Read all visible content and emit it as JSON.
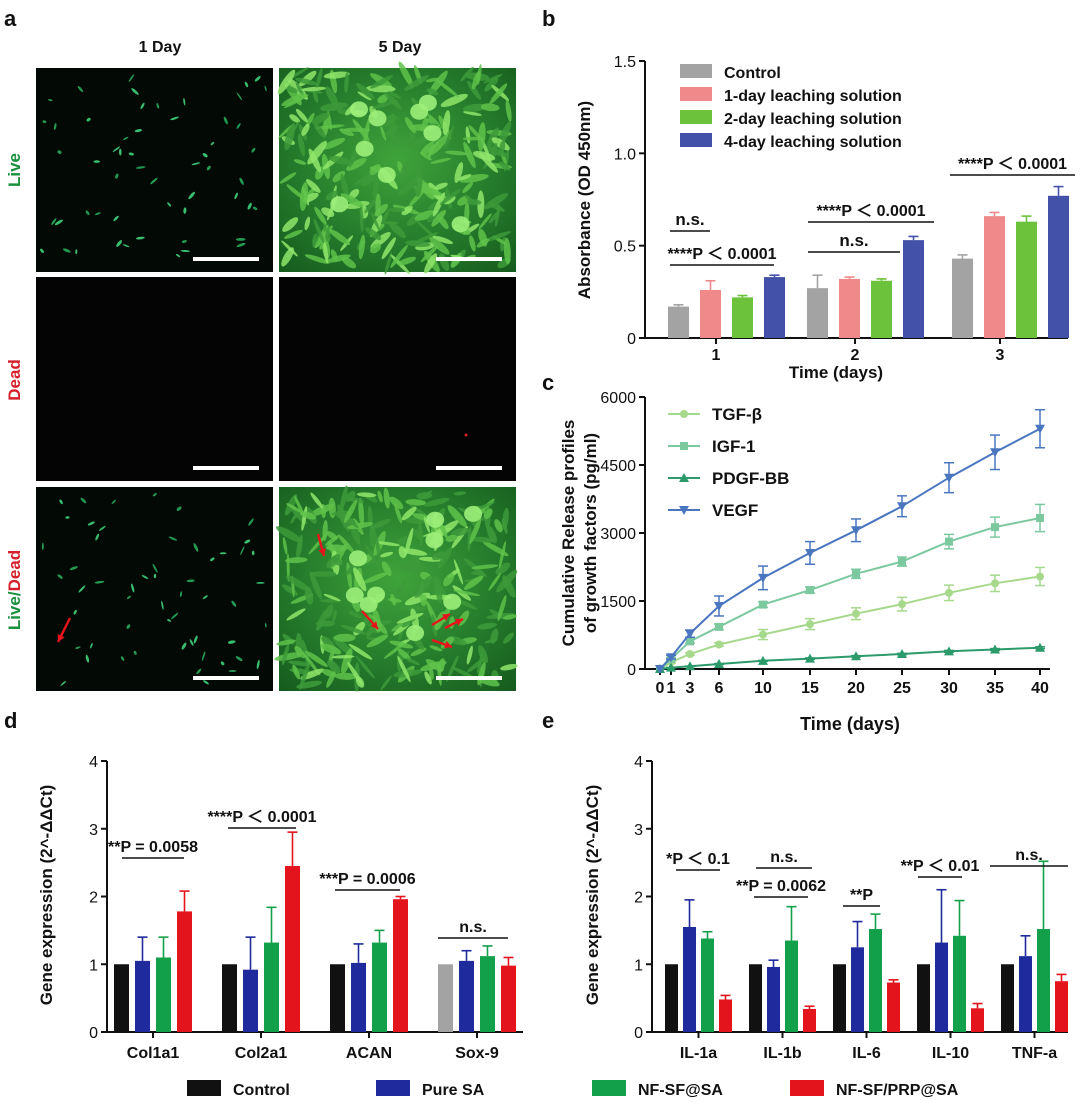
{
  "panel_labels": {
    "a": "a",
    "b": "b",
    "c": "c",
    "d": "d",
    "e": "e"
  },
  "micrographs": {
    "columns": [
      "1 Day",
      "5 Day"
    ],
    "rows": [
      "Live",
      "Dead",
      "Live/Dead"
    ],
    "row_label_live_part": "Live",
    "row_label_dead_part": "Dead",
    "row_label_separator": "/",
    "live_color": "#1a8f3c",
    "dead_color": "#d4202a"
  },
  "colors": {
    "control": "#a3a3a3",
    "one_day": "#f08a8a",
    "two_day": "#6cc23a",
    "four_day": "#4451a8",
    "tgf": "#a6d98c",
    "igf": "#7cc9a0",
    "pdgf": "#2c9a6a",
    "vegf": "#4a76c0",
    "d_control": "#111111",
    "d_puresa": "#1f2a9c",
    "d_nfsf": "#13a04a",
    "d_nfsfprp": "#e3141c"
  },
  "chart_data": [
    {
      "type": "bar",
      "panel": "b",
      "categories": [
        "1",
        "2",
        "3"
      ],
      "xlabel": "Time (days)",
      "ylabel": "Absorbance (OD 450nm)",
      "ylim": [
        0,
        1.5
      ],
      "yticks": [
        "0",
        "0.5",
        "1.0",
        "1.5"
      ],
      "legend_position": "top-left",
      "series": [
        {
          "name": "Control",
          "values": [
            0.17,
            0.27,
            0.43
          ],
          "errors": [
            0.01,
            0.07,
            0.02
          ]
        },
        {
          "name": "1-day leaching solution",
          "values": [
            0.26,
            0.32,
            0.66
          ],
          "errors": [
            0.05,
            0.01,
            0.02
          ]
        },
        {
          "name": "2-day leaching solution",
          "values": [
            0.22,
            0.31,
            0.63
          ],
          "errors": [
            0.01,
            0.01,
            0.03
          ]
        },
        {
          "name": "4-day leaching solution",
          "values": [
            0.33,
            0.53,
            0.77
          ],
          "errors": [
            0.01,
            0.02,
            0.05
          ]
        }
      ],
      "annotations": [
        "n.s.",
        "****P ＜ 0.0001",
        "****P ＜ 0.0001",
        "n.s.",
        "****P ＜ 0.0001"
      ]
    },
    {
      "type": "line",
      "panel": "c",
      "x": [
        0,
        1,
        3,
        6,
        10,
        15,
        20,
        25,
        30,
        35,
        40
      ],
      "xticks": [
        "0",
        "1",
        "3",
        "6",
        "10",
        "15",
        "20",
        "25",
        "30",
        "35",
        "40"
      ],
      "xlabel": "Time (days)",
      "ylabel_line1": "Cumulative Release profiles",
      "ylabel_line2": "of growth factors (pg/ml)",
      "ylim": [
        0,
        6000
      ],
      "yticks": [
        "0",
        "1500",
        "3000",
        "4500",
        "6000"
      ],
      "legend_position": "top-left",
      "series": [
        {
          "name": "TGF-β",
          "marker": "circle",
          "values": [
            0,
            150,
            330,
            540,
            760,
            990,
            1220,
            1430,
            1680,
            1890,
            2040
          ],
          "errors": [
            0,
            20,
            30,
            40,
            110,
            120,
            130,
            150,
            170,
            180,
            200
          ]
        },
        {
          "name": "IGF-1",
          "marker": "square",
          "values": [
            0,
            220,
            610,
            930,
            1420,
            1740,
            2100,
            2370,
            2810,
            3130,
            3330
          ],
          "errors": [
            0,
            30,
            40,
            60,
            60,
            70,
            100,
            100,
            160,
            220,
            300
          ]
        },
        {
          "name": "PDGF-BB",
          "marker": "triangle-up",
          "values": [
            0,
            30,
            60,
            110,
            180,
            230,
            280,
            330,
            390,
            430,
            470
          ],
          "errors": [
            0,
            5,
            5,
            10,
            10,
            15,
            15,
            15,
            20,
            20,
            20
          ]
        },
        {
          "name": "VEGF",
          "marker": "triangle-down",
          "values": [
            0,
            260,
            780,
            1390,
            2010,
            2560,
            3060,
            3590,
            4220,
            4780,
            5300
          ],
          "errors": [
            0,
            40,
            80,
            220,
            260,
            250,
            250,
            230,
            330,
            380,
            420
          ]
        }
      ]
    },
    {
      "type": "bar",
      "panel": "d",
      "categories": [
        "Col1a1",
        "Col2a1",
        "ACAN",
        "Sox-9"
      ],
      "ylabel": "Gene expression (2^-ΔΔCt)",
      "ylim": [
        0,
        4
      ],
      "yticks": [
        "0",
        "1",
        "2",
        "3",
        "4"
      ],
      "series": [
        {
          "name": "Control",
          "values": [
            1.0,
            1.0,
            1.0,
            1.0
          ],
          "errors": [
            0,
            0,
            0,
            0
          ]
        },
        {
          "name": "Pure SA",
          "values": [
            1.05,
            0.92,
            1.02,
            1.05
          ],
          "errors": [
            0.35,
            0.48,
            0.28,
            0.15
          ]
        },
        {
          "name": "NF-SF@SA",
          "values": [
            1.1,
            1.32,
            1.32,
            1.12
          ],
          "errors": [
            0.3,
            0.52,
            0.18,
            0.15
          ]
        },
        {
          "name": "NF-SF/PRP@SA",
          "values": [
            1.78,
            2.45,
            1.96,
            0.98
          ],
          "errors": [
            0.3,
            0.5,
            0.04,
            0.12
          ]
        }
      ],
      "annotations": [
        "**P = 0.0058",
        "****P ＜ 0.0001",
        "***P = 0.0006",
        "n.s."
      ]
    },
    {
      "type": "bar",
      "panel": "e",
      "categories": [
        "IL-1a",
        "IL-1b",
        "IL-6",
        "IL-10",
        "TNF-a"
      ],
      "ylabel": "Gene expression (2^-ΔΔCt)",
      "ylim": [
        0,
        4
      ],
      "yticks": [
        "0",
        "1",
        "2",
        "3",
        "4"
      ],
      "series": [
        {
          "name": "Control",
          "values": [
            1.0,
            1.0,
            1.0,
            1.0,
            1.0
          ],
          "errors": [
            0,
            0,
            0,
            0,
            0
          ]
        },
        {
          "name": "Pure SA",
          "values": [
            1.55,
            0.96,
            1.25,
            1.32,
            1.12
          ],
          "errors": [
            0.4,
            0.1,
            0.38,
            0.78,
            0.3
          ]
        },
        {
          "name": "NF-SF@SA",
          "values": [
            1.38,
            1.35,
            1.52,
            1.42,
            1.52
          ],
          "errors": [
            0.1,
            0.5,
            0.22,
            0.52,
            1.0
          ]
        },
        {
          "name": "NF-SF/PRP@SA",
          "values": [
            0.48,
            0.34,
            0.73,
            0.35,
            0.75
          ],
          "errors": [
            0.06,
            0.04,
            0.04,
            0.07,
            0.1
          ]
        }
      ],
      "annotations": [
        "*P ＜ 0.1",
        "n.s.",
        "**P = 0.0062",
        "**P",
        "**P ＜ 0.01",
        "n.s."
      ]
    }
  ],
  "shared_legend": [
    "Control",
    "Pure SA",
    "NF-SF@SA",
    "NF-SF/PRP@SA"
  ]
}
